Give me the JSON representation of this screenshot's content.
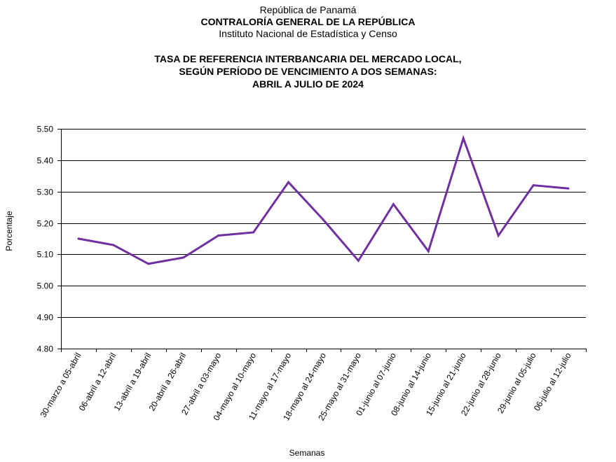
{
  "header": {
    "line1": "República de Panamá",
    "line2": "CONTRALORÍA GENERAL DE LA REPÚBLICA",
    "line3": "Instituto Nacional de Estadística y Censo"
  },
  "colors": {
    "line": "#7030A0",
    "grid": "#000000"
  },
  "chart_data": {
    "type": "line",
    "title": "TASA DE REFERENCIA INTERBANCARIA DEL MERCADO LOCAL, SEGÚN PERÍODO DE VENCIMIENTO A DOS SEMANAS: ABRIL A JULIO DE 2024",
    "title_lines": [
      "TASA DE REFERENCIA INTERBANCARIA DEL MERCADO LOCAL,",
      "SEGÚN PERÍODO DE VENCIMIENTO A DOS SEMANAS:",
      "ABRIL A JULIO DE 2024"
    ],
    "xlabel": "Semanas",
    "ylabel": "Porcentaje",
    "ylim": [
      4.8,
      5.5
    ],
    "yticks": [
      "4.80",
      "4.90",
      "5.00",
      "5.10",
      "5.20",
      "5.30",
      "5.40",
      "5.50"
    ],
    "grid": true,
    "legend": "none",
    "categories": [
      "30-marzo a 05-abril",
      "06-abril a 12-abril",
      "13-abril a 19-abril",
      "20-abril a 26-abril",
      "27-abril a 03-mayo",
      "04-mayo al 10-mayo",
      "11-mayo al 17-mayo",
      "18-mayo al 24-mayo",
      "25-mayo al 31-mayo",
      "01-junio al 07-junio",
      "08-junio al 14-junio",
      "15-junio al 21-junio",
      "22-junio al 28-junio",
      "29-junio al 05-julio",
      "06-julio al 12-julio"
    ],
    "values": [
      5.15,
      5.13,
      5.07,
      5.09,
      5.16,
      5.17,
      5.33,
      5.21,
      5.08,
      5.26,
      5.11,
      5.47,
      5.16,
      5.32,
      5.31
    ]
  }
}
